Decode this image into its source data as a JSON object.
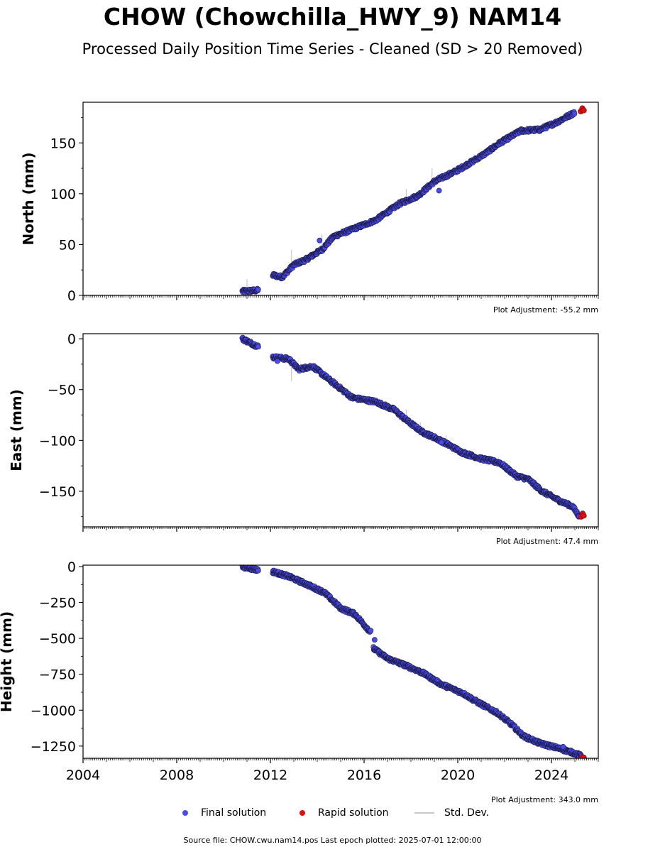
{
  "title": "CHOW (Chowchilla_HWY_9) NAM14",
  "subtitle": "Processed Daily Position Time Series - Cleaned (SD > 20 Removed)",
  "colors": {
    "final": "#4a4af0",
    "final_edge": "#1a1a40",
    "rapid": "#e01010",
    "stddev": "#c8c8c8"
  },
  "chart_data": [
    {
      "type": "scatter",
      "ylabel": "North (mm)",
      "xlim": [
        2004,
        2026
      ],
      "ylim": [
        0,
        190
      ],
      "yticks": [
        0,
        50,
        100,
        150
      ],
      "ytick_labels": [
        "0",
        "50",
        "100",
        "150"
      ],
      "xtick_labels": [],
      "adjustment": "Plot Adjustment: -55.2 mm",
      "final_trend": [
        [
          2010.8,
          4
        ],
        [
          2011.5,
          5
        ],
        [
          2012.1,
          20
        ],
        [
          2012.5,
          18
        ],
        [
          2013.0,
          30
        ],
        [
          2013.5,
          35
        ],
        [
          2014.2,
          45
        ],
        [
          2014.7,
          58
        ],
        [
          2015.5,
          65
        ],
        [
          2016.5,
          74
        ],
        [
          2017.5,
          90
        ],
        [
          2018.3,
          98
        ],
        [
          2019.0,
          112
        ],
        [
          2019.9,
          122
        ],
        [
          2020.5,
          130
        ],
        [
          2021.2,
          140
        ],
        [
          2021.8,
          150
        ],
        [
          2022.7,
          162
        ],
        [
          2023.5,
          163
        ],
        [
          2024.2,
          170
        ],
        [
          2025.0,
          180
        ]
      ],
      "final_outliers": [
        [
          2014.1,
          54
        ],
        [
          2019.2,
          103
        ]
      ],
      "stddev_bars": [
        [
          2011.0,
          16
        ],
        [
          2012.9,
          45
        ],
        [
          2014.2,
          60
        ],
        [
          2017.8,
          105
        ],
        [
          2018.9,
          125
        ],
        [
          2019.2,
          120
        ],
        [
          2023.7,
          170
        ]
      ],
      "rapid": [
        [
          2025.25,
          181
        ],
        [
          2025.32,
          184
        ],
        [
          2025.38,
          182
        ]
      ]
    },
    {
      "type": "scatter",
      "ylabel": "East (mm)",
      "xlim": [
        2004,
        2026
      ],
      "ylim": [
        -185,
        5
      ],
      "yticks": [
        0,
        -50,
        -100,
        -150
      ],
      "ytick_labels": [
        "0",
        "−50",
        "−100",
        "−150"
      ],
      "xtick_labels": [],
      "adjustment": "Plot Adjustment: 47.4 mm",
      "final_trend": [
        [
          2010.8,
          0
        ],
        [
          2011.5,
          -8
        ],
        [
          2012.1,
          -18
        ],
        [
          2012.8,
          -20
        ],
        [
          2013.2,
          -30
        ],
        [
          2013.8,
          -27
        ],
        [
          2014.5,
          -40
        ],
        [
          2015.5,
          -58
        ],
        [
          2016.5,
          -62
        ],
        [
          2017.3,
          -70
        ],
        [
          2017.8,
          -80
        ],
        [
          2018.5,
          -92
        ],
        [
          2019.0,
          -97
        ],
        [
          2019.5,
          -103
        ],
        [
          2020.2,
          -112
        ],
        [
          2021.0,
          -118
        ],
        [
          2021.8,
          -122
        ],
        [
          2022.5,
          -135
        ],
        [
          2023.0,
          -138
        ],
        [
          2023.6,
          -150
        ],
        [
          2024.4,
          -160
        ],
        [
          2024.9,
          -165
        ],
        [
          2025.2,
          -175
        ]
      ],
      "final_outliers": [
        [
          2012.3,
          -22
        ],
        [
          2019.3,
          -102
        ]
      ],
      "stddev_bars": [
        [
          2012.9,
          -42
        ],
        [
          2017.8,
          -70
        ],
        [
          2018.4,
          -82
        ],
        [
          2019.5,
          -95
        ],
        [
          2019.8,
          -110
        ]
      ],
      "rapid": [
        [
          2025.27,
          -175
        ],
        [
          2025.33,
          -172
        ],
        [
          2025.38,
          -174
        ]
      ]
    },
    {
      "type": "scatter",
      "ylabel": "Height (mm)",
      "xlim": [
        2004,
        2026
      ],
      "ylim": [
        -1335,
        10
      ],
      "yticks": [
        0,
        -250,
        -500,
        -750,
        -1000,
        -1250
      ],
      "ytick_labels": [
        "0",
        "−250",
        "−500",
        "−750",
        "−1000",
        "−1250"
      ],
      "xtick_labels": [
        "2004",
        "2008",
        "2012",
        "2016",
        "2020",
        "2024"
      ],
      "xtick_values": [
        2004,
        2008,
        2012,
        2016,
        2020,
        2024
      ],
      "adjustment": "Plot Adjustment: 343.0 mm",
      "final_trend": [
        [
          2010.8,
          0
        ],
        [
          2011.5,
          -25
        ],
        [
          2012.1,
          -35
        ],
        [
          2012.8,
          -70
        ],
        [
          2013.5,
          -120
        ],
        [
          2014.3,
          -180
        ],
        [
          2015.0,
          -290
        ],
        [
          2015.6,
          -330
        ],
        [
          2016.3,
          -460
        ],
        [
          2016.4,
          -570
        ],
        [
          2017.0,
          -640
        ],
        [
          2017.8,
          -690
        ],
        [
          2018.5,
          -740
        ],
        [
          2019.3,
          -820
        ],
        [
          2020.2,
          -880
        ],
        [
          2020.8,
          -940
        ],
        [
          2021.7,
          -1020
        ],
        [
          2022.3,
          -1100
        ],
        [
          2022.8,
          -1180
        ],
        [
          2023.5,
          -1230
        ],
        [
          2024.4,
          -1270
        ],
        [
          2025.0,
          -1300
        ],
        [
          2025.3,
          -1320
        ]
      ],
      "final_outliers": [
        [
          2016.45,
          -510
        ],
        [
          2024.5,
          -1255
        ]
      ],
      "stddev_bars": [],
      "rapid": [
        [
          2025.3,
          -1328
        ],
        [
          2025.38,
          -1330
        ]
      ]
    }
  ],
  "legend": {
    "final": "Final solution",
    "rapid": "Rapid solution",
    "stddev": "Std. Dev."
  },
  "source": "Source file: CHOW.cwu.nam14.pos  Last epoch plotted: 2025-07-01 12:00:00"
}
